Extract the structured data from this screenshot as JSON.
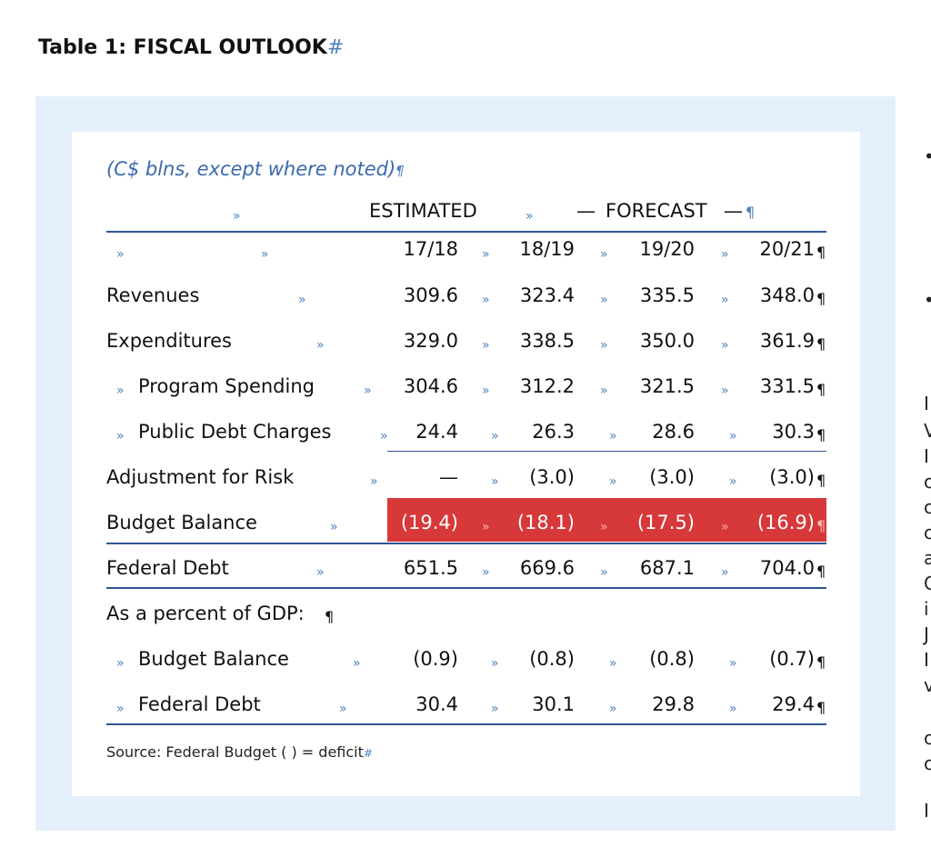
{
  "title": "Table 1: FISCAL OUTLOOK",
  "subtitle": "(C$ blns, except where noted)",
  "header": {
    "estimated": "ESTIMATED",
    "forecast": "FORECAST",
    "dash": "—"
  },
  "years": [
    "17/18",
    "18/19",
    "19/20",
    "20/21"
  ],
  "rows": [
    {
      "label": "Revenues",
      "values": [
        "309.6",
        "323.4",
        "335.5",
        "348.0"
      ]
    },
    {
      "label": "Expenditures",
      "values": [
        "329.0",
        "338.5",
        "350.0",
        "361.9"
      ]
    },
    {
      "label": "Program Spending",
      "values": [
        "304.6",
        "312.2",
        "321.5",
        "331.5"
      ]
    },
    {
      "label": "Public Debt Charges",
      "values": [
        "24.4",
        "26.3",
        "28.6",
        "30.3"
      ]
    },
    {
      "label": "Adjustment for Risk",
      "values": [
        "—",
        "(3.0)",
        "(3.0)",
        "(3.0)"
      ]
    },
    {
      "label": "Budget Balance",
      "values": [
        "(19.4)",
        "(18.1)",
        "(17.5)",
        "(16.9)"
      ]
    },
    {
      "label": "Federal Debt",
      "values": [
        "651.5",
        "669.6",
        "687.1",
        "704.0"
      ]
    },
    {
      "label": "As a percent of GDP:"
    },
    {
      "label": "Budget Balance",
      "values": [
        "(0.9)",
        "(0.8)",
        "(0.8)",
        "(0.7)"
      ]
    },
    {
      "label": "Federal Debt",
      "values": [
        "30.4",
        "30.1",
        "29.8",
        "29.4"
      ]
    }
  ],
  "source": "Source: Federal Budget ( ) = deficit",
  "formatting_marks": {
    "tab": "»",
    "pilcrow": "¶",
    "end_of_cell": "#"
  },
  "right_edge_text": [
    "•",
    "•",
    "I",
    "V",
    "I",
    "c",
    "c",
    "c",
    "a",
    "C",
    "i",
    "J",
    "I",
    "v",
    "c",
    "c",
    "I"
  ],
  "colors": {
    "highlight": "#d7383a",
    "rule": "#2f5496",
    "frame": "#e3effa",
    "subtitle": "#3a69ac",
    "format_marks": "#4f81bd"
  }
}
